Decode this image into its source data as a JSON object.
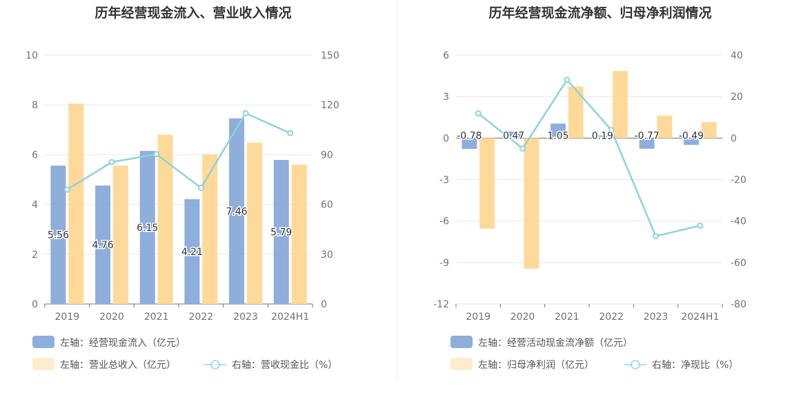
{
  "colors": {
    "blue": "#8eaedc",
    "orange": "#ffd999",
    "teal": "#8dd3d7",
    "grid": "#e4e7ee",
    "axis": "#6e7079"
  },
  "chart_data": [
    {
      "type": "bar",
      "title": "历年经营现金流入、营业收入情况",
      "categories": [
        "2019",
        "2020",
        "2021",
        "2022",
        "2023",
        "2024H1"
      ],
      "y_left": {
        "ylim": [
          0,
          10
        ],
        "ticks": [
          "0",
          "2",
          "4",
          "6",
          "8",
          "10"
        ]
      },
      "y_right": {
        "ylim": [
          0,
          150
        ],
        "ticks": [
          "0",
          "30",
          "60",
          "90",
          "120",
          "150"
        ]
      },
      "series": [
        {
          "name": "左轴：经营现金流入（亿元）",
          "axis": "left",
          "type": "bar",
          "color": "#8eaedc",
          "values": [
            5.56,
            4.76,
            6.15,
            4.21,
            7.46,
            5.79
          ],
          "labels": [
            "5.56",
            "4.76",
            "6.15",
            "4.21",
            "7.46",
            "5.79"
          ]
        },
        {
          "name": "左轴：营业总收入（亿元）",
          "axis": "left",
          "type": "bar",
          "color": "#ffd999",
          "values": [
            8.05,
            5.56,
            6.8,
            6.02,
            6.48,
            5.6
          ]
        },
        {
          "name": "右轴：营收现金比（%）",
          "axis": "right",
          "type": "line",
          "color": "#8dd3d7",
          "values": [
            69,
            85.5,
            90.3,
            70,
            115,
            103
          ]
        }
      ],
      "grid": true,
      "legend_position": "bottom"
    },
    {
      "type": "bar",
      "title": "历年经营现金流净额、归母净利润情况",
      "categories": [
        "2019",
        "2020",
        "2021",
        "2022",
        "2023",
        "2024H1"
      ],
      "y_left": {
        "ylim": [
          -12,
          6
        ],
        "ticks": [
          "-12",
          "-9",
          "-6",
          "-3",
          "0",
          "3",
          "6"
        ]
      },
      "y_right": {
        "ylim": [
          -80,
          40
        ],
        "ticks": [
          "-80",
          "-60",
          "-40",
          "-20",
          "0",
          "20",
          "40"
        ]
      },
      "series": [
        {
          "name": "左轴：经营活动现金流净额（亿元）",
          "axis": "left",
          "type": "bar",
          "color": "#8eaedc",
          "values": [
            -0.78,
            0.47,
            1.05,
            0.19,
            -0.77,
            -0.49
          ],
          "labels": [
            "-0.78",
            "0.47",
            "1.05",
            "0.19",
            "-0.77",
            "-0.49"
          ]
        },
        {
          "name": "左轴：归母净利润（亿元）",
          "axis": "left",
          "type": "bar",
          "color": "#ffd999",
          "values": [
            -6.55,
            -9.45,
            3.73,
            4.85,
            1.62,
            1.16
          ]
        },
        {
          "name": "右轴：净现比（%）",
          "axis": "right",
          "type": "line",
          "color": "#8dd3d7",
          "values": [
            11.9,
            -5,
            28.1,
            3.9,
            -47.3,
            -42.2
          ]
        }
      ],
      "grid": true,
      "legend_position": "bottom"
    }
  ]
}
